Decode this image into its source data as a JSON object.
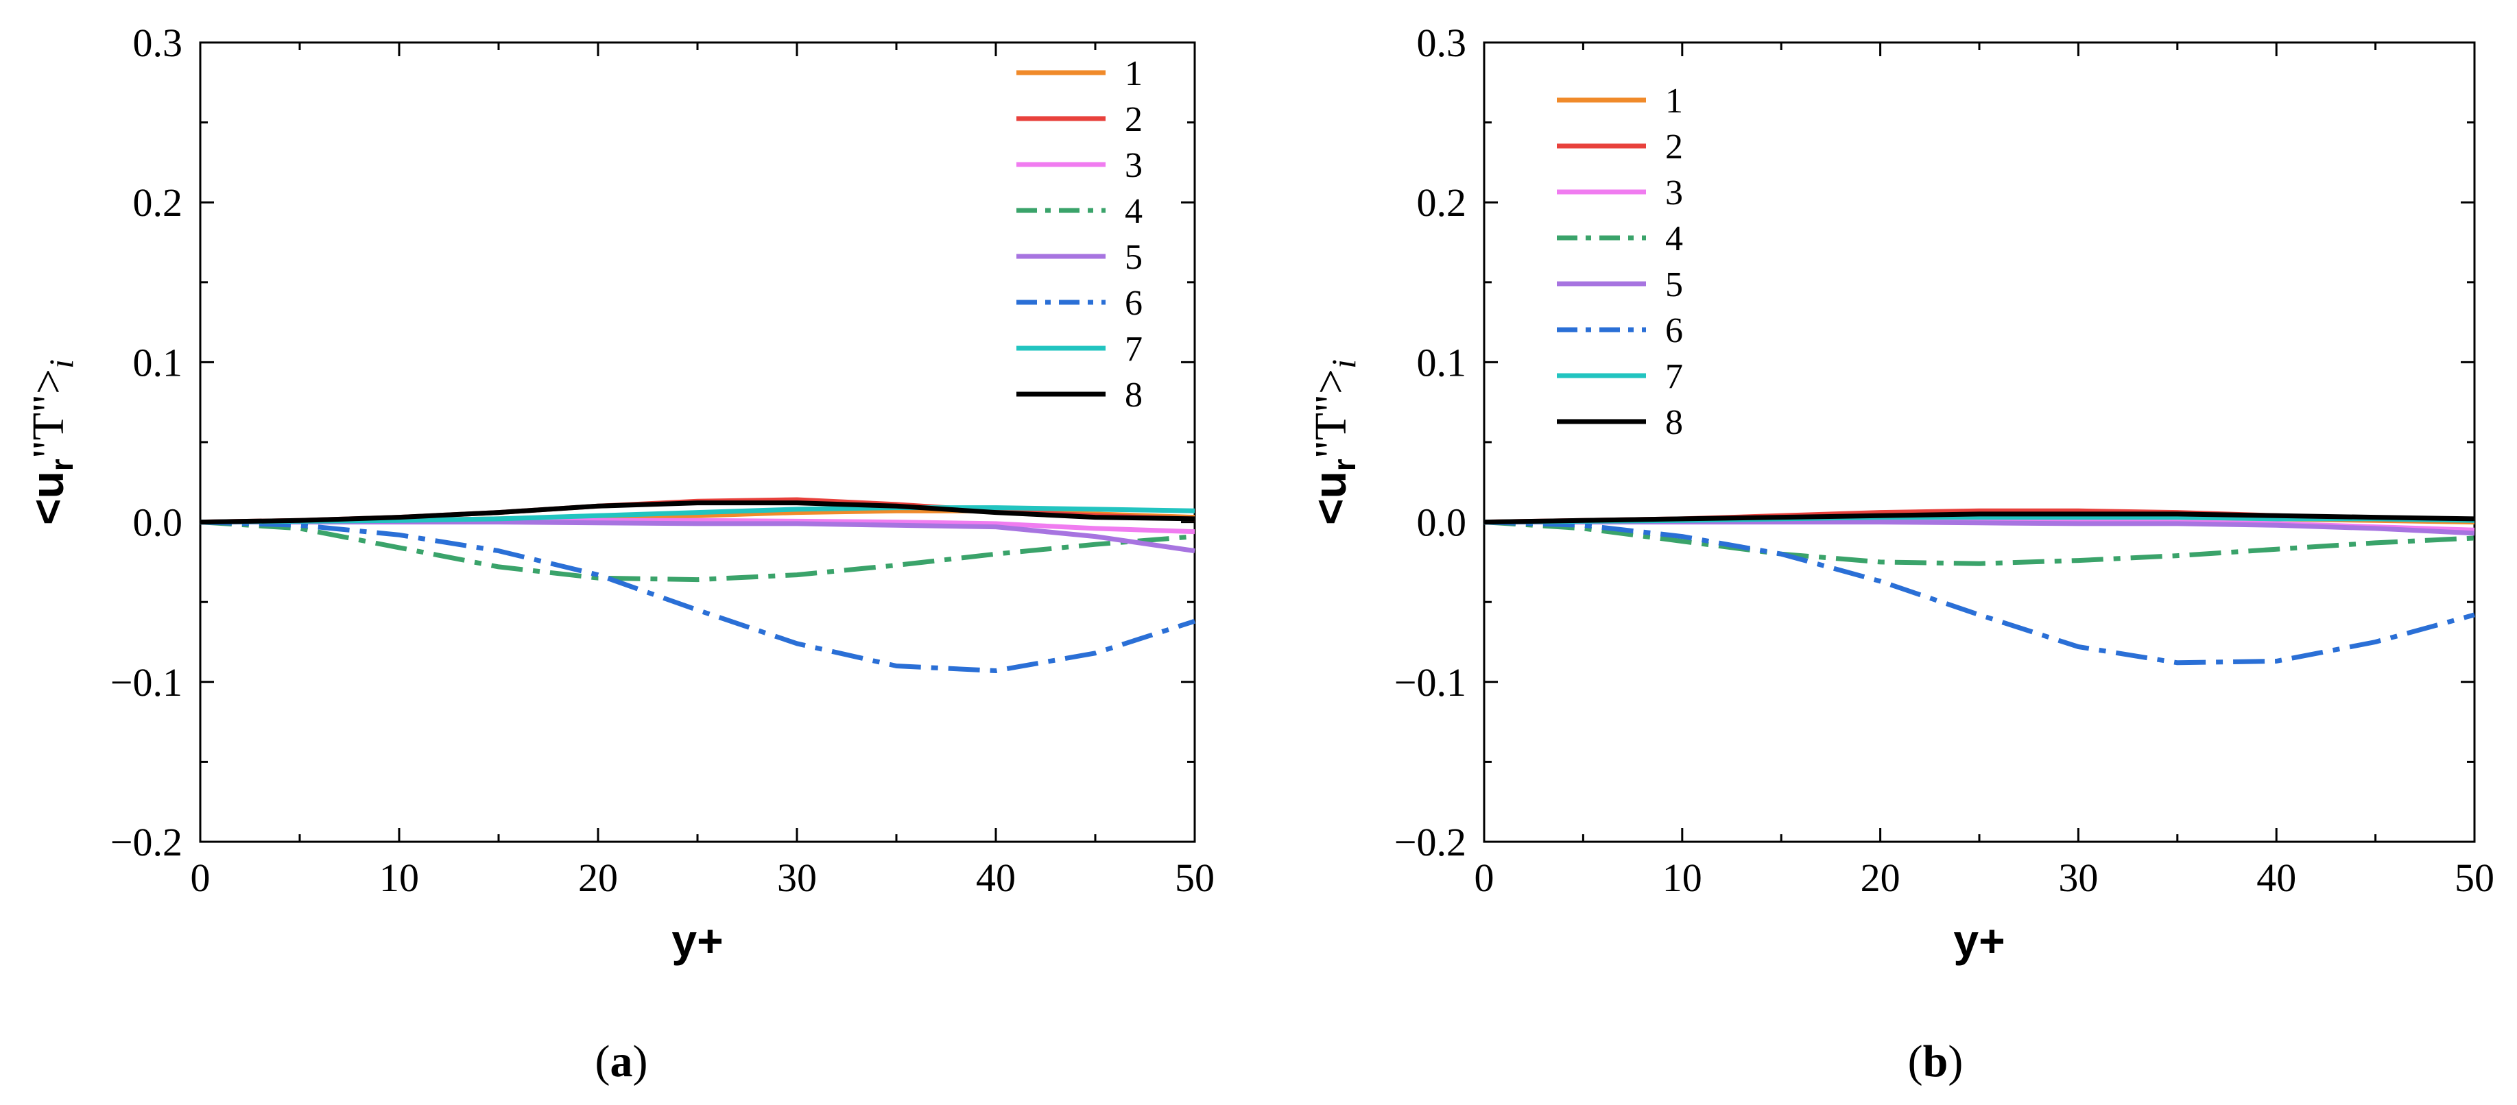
{
  "colors": {
    "s1": "#f08a2a",
    "s2": "#e8413c",
    "s3": "#f07cf0",
    "s4": "#3aa36a",
    "s5": "#a774e0",
    "s6": "#2a6fd6",
    "s7": "#22c4c0",
    "s8": "#000000"
  },
  "chart_data": [
    {
      "type": "line",
      "panel": "a",
      "caption": {
        "open": "(",
        "letter": "a",
        "close": ")"
      },
      "xlabel": "y+",
      "ylabel": {
        "open": "<u",
        "sub": "r",
        "mid": "\"T\">",
        "italic": "i"
      },
      "xlim": [
        0,
        50
      ],
      "ylim": [
        -0.2,
        0.3
      ],
      "xticks": [
        0,
        10,
        20,
        30,
        40,
        50
      ],
      "xtick_labels": [
        "0",
        "10",
        "20",
        "30",
        "40",
        "50"
      ],
      "yticks": [
        -0.2,
        -0.1,
        0.0,
        0.1,
        0.2,
        0.3
      ],
      "ytick_labels": [
        "−0.2",
        "−0.1",
        "0.0",
        "0.1",
        "0.2",
        "0.3"
      ],
      "legend_position": "top-right",
      "series": [
        {
          "name": "1",
          "style": "solid",
          "x": [
            0,
            5,
            10,
            15,
            20,
            25,
            30,
            35,
            40,
            45,
            50
          ],
          "y": [
            0,
            0.0005,
            0.001,
            0.002,
            0.003,
            0.004,
            0.006,
            0.007,
            0.007,
            0.005,
            0.003
          ]
        },
        {
          "name": "2",
          "style": "solid",
          "x": [
            0,
            5,
            10,
            15,
            20,
            25,
            30,
            35,
            40,
            45,
            50
          ],
          "y": [
            0,
            0.001,
            0.003,
            0.006,
            0.01,
            0.013,
            0.014,
            0.011,
            0.007,
            0.004,
            0.002
          ]
        },
        {
          "name": "3",
          "style": "solid",
          "x": [
            0,
            5,
            10,
            15,
            20,
            25,
            30,
            35,
            40,
            45,
            50
          ],
          "y": [
            0,
            0.0005,
            0.001,
            0.001,
            0.001,
            0.001,
            0.0005,
            0,
            -0.001,
            -0.004,
            -0.006
          ]
        },
        {
          "name": "4",
          "style": "dashdot",
          "x": [
            0,
            5,
            10,
            15,
            20,
            25,
            30,
            35,
            40,
            45,
            50
          ],
          "y": [
            0,
            -0.004,
            -0.016,
            -0.028,
            -0.035,
            -0.036,
            -0.033,
            -0.027,
            -0.02,
            -0.014,
            -0.009
          ]
        },
        {
          "name": "5",
          "style": "solid",
          "x": [
            0,
            5,
            10,
            15,
            20,
            25,
            30,
            35,
            40,
            45,
            50
          ],
          "y": [
            0,
            0,
            0,
            0,
            -0.0005,
            -0.001,
            -0.001,
            -0.002,
            -0.003,
            -0.009,
            -0.018
          ]
        },
        {
          "name": "6",
          "style": "dashdot",
          "x": [
            0,
            5,
            10,
            15,
            20,
            25,
            30,
            35,
            40,
            45,
            50
          ],
          "y": [
            0,
            -0.002,
            -0.008,
            -0.018,
            -0.033,
            -0.055,
            -0.076,
            -0.09,
            -0.093,
            -0.082,
            -0.062
          ]
        },
        {
          "name": "7",
          "style": "solid",
          "x": [
            0,
            5,
            10,
            15,
            20,
            25,
            30,
            35,
            40,
            45,
            50
          ],
          "y": [
            0,
            0.0005,
            0.001,
            0.002,
            0.004,
            0.006,
            0.008,
            0.009,
            0.009,
            0.008,
            0.007
          ]
        },
        {
          "name": "8",
          "style": "solid",
          "x": [
            0,
            5,
            10,
            15,
            20,
            25,
            30,
            35,
            40,
            45,
            50
          ],
          "y": [
            0,
            0.001,
            0.003,
            0.006,
            0.01,
            0.012,
            0.012,
            0.01,
            0.006,
            0.003,
            0.002
          ]
        }
      ]
    },
    {
      "type": "line",
      "panel": "b",
      "caption": {
        "open": "(",
        "letter": "b",
        "close": ")"
      },
      "xlabel": "y+",
      "ylabel": {
        "open": "<u",
        "sub": "r",
        "mid": "\"T\">",
        "italic": "i"
      },
      "xlim": [
        0,
        50
      ],
      "ylim": [
        -0.2,
        0.3
      ],
      "xticks": [
        0,
        10,
        20,
        30,
        40,
        50
      ],
      "xtick_labels": [
        "0",
        "10",
        "20",
        "30",
        "40",
        "50"
      ],
      "yticks": [
        -0.2,
        -0.1,
        0.0,
        0.1,
        0.2,
        0.3
      ],
      "ytick_labels": [
        "−0.2",
        "−0.1",
        "0.0",
        "0.1",
        "0.2",
        "0.3"
      ],
      "legend_position": "top-left",
      "series": [
        {
          "name": "1",
          "style": "solid",
          "x": [
            0,
            5,
            10,
            15,
            20,
            25,
            30,
            35,
            40,
            45,
            50
          ],
          "y": [
            0,
            0.0005,
            0.001,
            0.002,
            0.003,
            0.003,
            0.003,
            0.003,
            0.002,
            0.001,
            0
          ]
        },
        {
          "name": "2",
          "style": "solid",
          "x": [
            0,
            5,
            10,
            15,
            20,
            25,
            30,
            35,
            40,
            45,
            50
          ],
          "y": [
            0,
            0.001,
            0.002,
            0.004,
            0.006,
            0.007,
            0.007,
            0.006,
            0.004,
            0.002,
            0.001
          ]
        },
        {
          "name": "3",
          "style": "solid",
          "x": [
            0,
            5,
            10,
            15,
            20,
            25,
            30,
            35,
            40,
            45,
            50
          ],
          "y": [
            0,
            0,
            0.0005,
            0.001,
            0.001,
            0.001,
            0.0005,
            0,
            -0.001,
            -0.003,
            -0.005
          ]
        },
        {
          "name": "4",
          "style": "dashdot",
          "x": [
            0,
            5,
            10,
            15,
            20,
            25,
            30,
            35,
            40,
            45,
            50
          ],
          "y": [
            0,
            -0.004,
            -0.012,
            -0.02,
            -0.025,
            -0.026,
            -0.024,
            -0.021,
            -0.017,
            -0.013,
            -0.01
          ]
        },
        {
          "name": "5",
          "style": "solid",
          "x": [
            0,
            5,
            10,
            15,
            20,
            25,
            30,
            35,
            40,
            45,
            50
          ],
          "y": [
            0,
            0,
            0,
            0,
            0,
            -0.0005,
            -0.001,
            -0.001,
            -0.002,
            -0.004,
            -0.007
          ]
        },
        {
          "name": "6",
          "style": "dashdot",
          "x": [
            0,
            5,
            10,
            15,
            20,
            25,
            30,
            35,
            40,
            45,
            50
          ],
          "y": [
            0,
            -0.002,
            -0.009,
            -0.02,
            -0.037,
            -0.058,
            -0.078,
            -0.088,
            -0.087,
            -0.075,
            -0.058
          ]
        },
        {
          "name": "7",
          "style": "solid",
          "x": [
            0,
            5,
            10,
            15,
            20,
            25,
            30,
            35,
            40,
            45,
            50
          ],
          "y": [
            0,
            0.0005,
            0.001,
            0.002,
            0.003,
            0.003,
            0.003,
            0.003,
            0.002,
            0.002,
            0.001
          ]
        },
        {
          "name": "8",
          "style": "solid",
          "x": [
            0,
            5,
            10,
            15,
            20,
            25,
            30,
            35,
            40,
            45,
            50
          ],
          "y": [
            0,
            0.001,
            0.002,
            0.003,
            0.004,
            0.005,
            0.005,
            0.005,
            0.004,
            0.003,
            0.002
          ]
        }
      ]
    }
  ]
}
